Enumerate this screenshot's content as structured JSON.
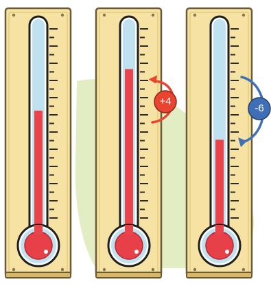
{
  "thermometers": [
    {
      "id": "thermo-1",
      "level": 0.56,
      "change_label": null
    },
    {
      "id": "thermo-2",
      "level": 0.76,
      "change_label": "+4",
      "change_color": "#e8442f"
    },
    {
      "id": "thermo-3",
      "level": 0.42,
      "change_label": "-6",
      "change_color": "#3f6fb5"
    }
  ],
  "colors": {
    "board": "#f6e3a4",
    "board_border": "#6b5a3a",
    "tube_glass": "#bfe1f0",
    "mercury": "#e8444a",
    "bulb": "#e84048",
    "background_blob": "#e2edc4"
  }
}
